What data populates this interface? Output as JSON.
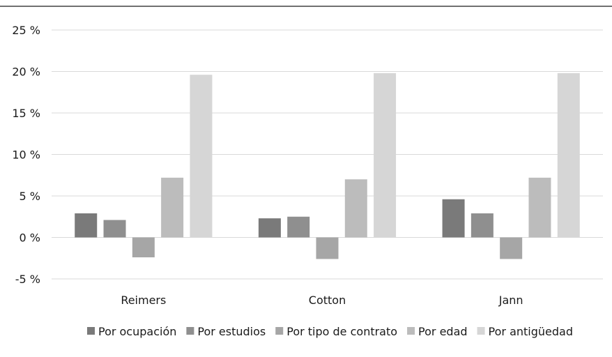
{
  "chart_data": {
    "type": "bar",
    "categories": [
      "Reimers",
      "Cotton",
      "Jann"
    ],
    "series": [
      {
        "name": "Por ocupación",
        "color": "#7a7a7a",
        "values": [
          2.9,
          2.3,
          4.6
        ]
      },
      {
        "name": "Por estudios",
        "color": "#8f8f8f",
        "values": [
          2.1,
          2.5,
          2.9
        ]
      },
      {
        "name": "Por tipo de contrato",
        "color": "#a6a6a6",
        "values": [
          -2.4,
          -2.6,
          -2.6
        ]
      },
      {
        "name": "Por edad",
        "color": "#bcbcbc",
        "values": [
          7.2,
          7.0,
          7.2
        ]
      },
      {
        "name": "Por antigüedad",
        "color": "#d6d6d6",
        "values": [
          19.6,
          19.8,
          19.8
        ]
      }
    ],
    "y_ticks": [
      "25 %",
      "20 %",
      "15 %",
      "10 %",
      "5 %",
      "0 %",
      "-5 %"
    ],
    "y_tick_values": [
      25,
      20,
      15,
      10,
      5,
      0,
      -5
    ],
    "ylim": [
      -5,
      25
    ],
    "grid": true,
    "legend_position": "bottom",
    "title": "",
    "xlabel": "",
    "ylabel": ""
  }
}
